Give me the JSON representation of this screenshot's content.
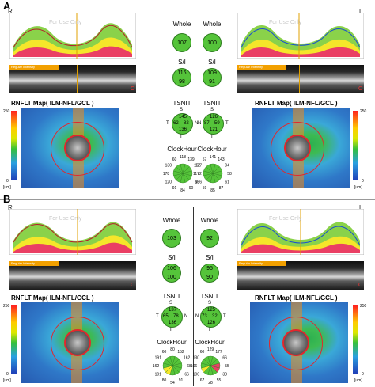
{
  "panels": [
    {
      "letter": "A",
      "left_side": "R",
      "right_side": "L",
      "watermark": "For Use Only",
      "bscan_left": "Regular Intensity",
      "bscan_right": "Regular Intensity",
      "bscan_mark": "C",
      "map_title_left": "RNFLT Map( ILM-NFL/GCL )",
      "map_title_right": "RNFLT Map( ILM-NFL/GCL )",
      "scale_top": "250",
      "scale_bottom": "0",
      "scale_unit": "[um]",
      "od": {
        "whole": "107",
        "si": [
          "116",
          "98"
        ],
        "tsnit": [
          "145",
          "62",
          "82",
          "136"
        ],
        "clock": [
          "118",
          "139",
          "152",
          "72",
          "65",
          "90",
          "84",
          "91",
          "120",
          "178",
          "130",
          "60"
        ]
      },
      "os": {
        "whole": "100",
        "si": [
          "109",
          "91"
        ],
        "tsnit": [
          "126",
          "87",
          "59",
          "121"
        ],
        "clock": [
          "141",
          "143",
          "94",
          "58",
          "61",
          "87",
          "85",
          "59",
          "106",
          "117",
          "127",
          "57"
        ]
      }
    },
    {
      "letter": "B",
      "left_side": "R",
      "right_side": "L",
      "watermark": "For Use Only",
      "bscan_left": "Regular Intensity",
      "bscan_right": "Regular Intensity",
      "bscan_mark": "C",
      "map_title_left": "RNFLT Map( ILM-NFL/GCL )",
      "map_title_right": "RNFLT Map( ILM-NFL/GCL )",
      "scale_top": "250",
      "scale_bottom": "0",
      "scale_unit": "[um]",
      "od": {
        "whole": "103",
        "si": [
          "106",
          "100"
        ],
        "tsnit": [
          "137",
          "65",
          "78",
          "136"
        ],
        "clock": [
          "80",
          "152",
          "162",
          "68",
          "66",
          "91",
          "54",
          "80",
          "101",
          "162",
          "191",
          "60"
        ]
      },
      "os": {
        "whole": "92",
        "si": [
          "95",
          "90"
        ],
        "tsnit": [
          "125",
          "73",
          "32",
          "126"
        ],
        "clock": [
          "129",
          "177",
          "66",
          "55",
          "38",
          "55",
          "28",
          "67",
          "100",
          "106",
          "130",
          "60"
        ]
      }
    }
  ],
  "labels": {
    "whole": "Whole",
    "si": "S/I",
    "tsnit": "TSNIT",
    "clock": "ClockHour",
    "t": "T",
    "n": "N",
    "s": "S",
    "i": "I"
  }
}
